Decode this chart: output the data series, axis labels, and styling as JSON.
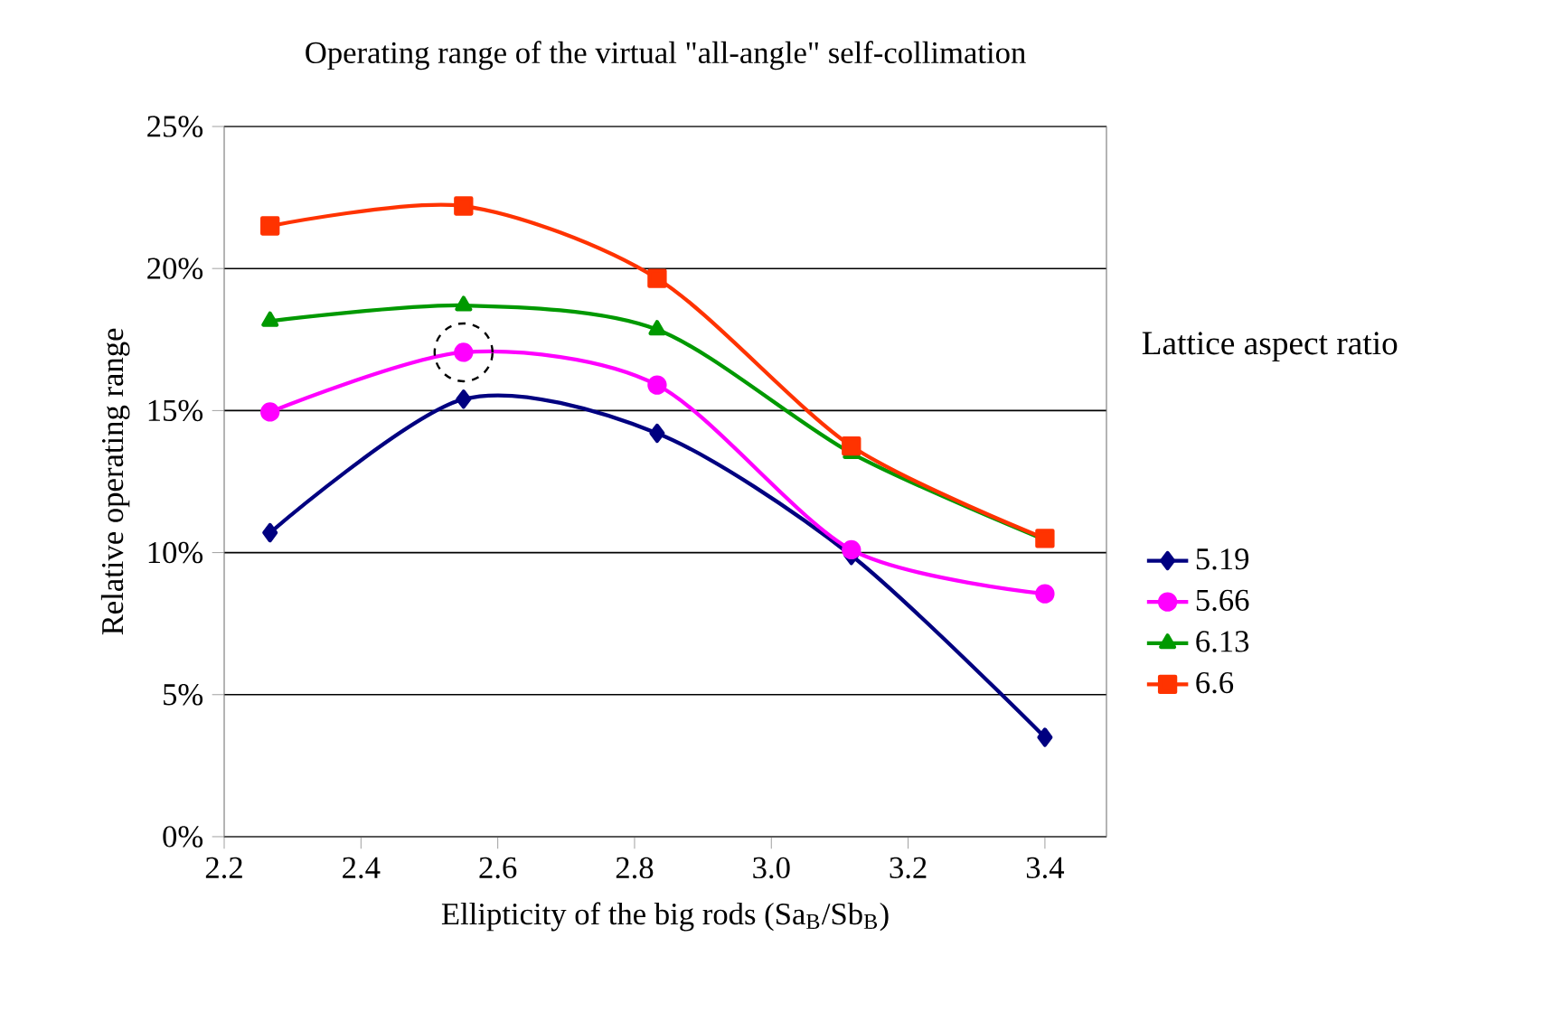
{
  "chart_data": {
    "type": "line",
    "title": "Operating range of the virtual \"all-angle\" self-collimation",
    "xlabel": "Ellipticity of the big rods (Sa$_{B}$/Sb$_{B}$)",
    "ylabel": "Relative operating range",
    "legend_title": "Lattice aspect ratio",
    "x": [
      2.267,
      2.55,
      2.833,
      3.117,
      3.4
    ],
    "series": [
      {
        "name": "5.19",
        "color": "#000080",
        "marker": "diamond",
        "values": [
          10.7,
          15.4,
          14.2,
          9.9,
          3.5
        ]
      },
      {
        "name": "5.66",
        "color": "#ff00ff",
        "marker": "circle",
        "values": [
          14.95,
          17.05,
          15.9,
          10.1,
          8.55
        ]
      },
      {
        "name": "6.13",
        "color": "#009900",
        "marker": "triangle",
        "values": [
          18.15,
          18.7,
          17.85,
          13.5,
          10.45
        ]
      },
      {
        "name": "6.6",
        "color": "#ff3300",
        "marker": "square",
        "values": [
          21.5,
          22.2,
          19.65,
          13.75,
          10.5
        ]
      }
    ],
    "xlim": [
      2.2,
      3.49
    ],
    "xticks": [
      2.2,
      2.4,
      2.6,
      2.8,
      {
        "value": 3.0,
        "label": "3.0"
      },
      3.2,
      3.4
    ],
    "ylim": [
      0,
      25
    ],
    "yticks": [
      {
        "value": 0,
        "label": "0%"
      },
      {
        "value": 5,
        "label": "5%"
      },
      {
        "value": 10,
        "label": "10%"
      },
      {
        "value": 15,
        "label": "15%"
      },
      {
        "value": 20,
        "label": "20%"
      },
      {
        "value": 25,
        "label": "25%"
      }
    ],
    "grid": "y",
    "legend": "right"
  }
}
